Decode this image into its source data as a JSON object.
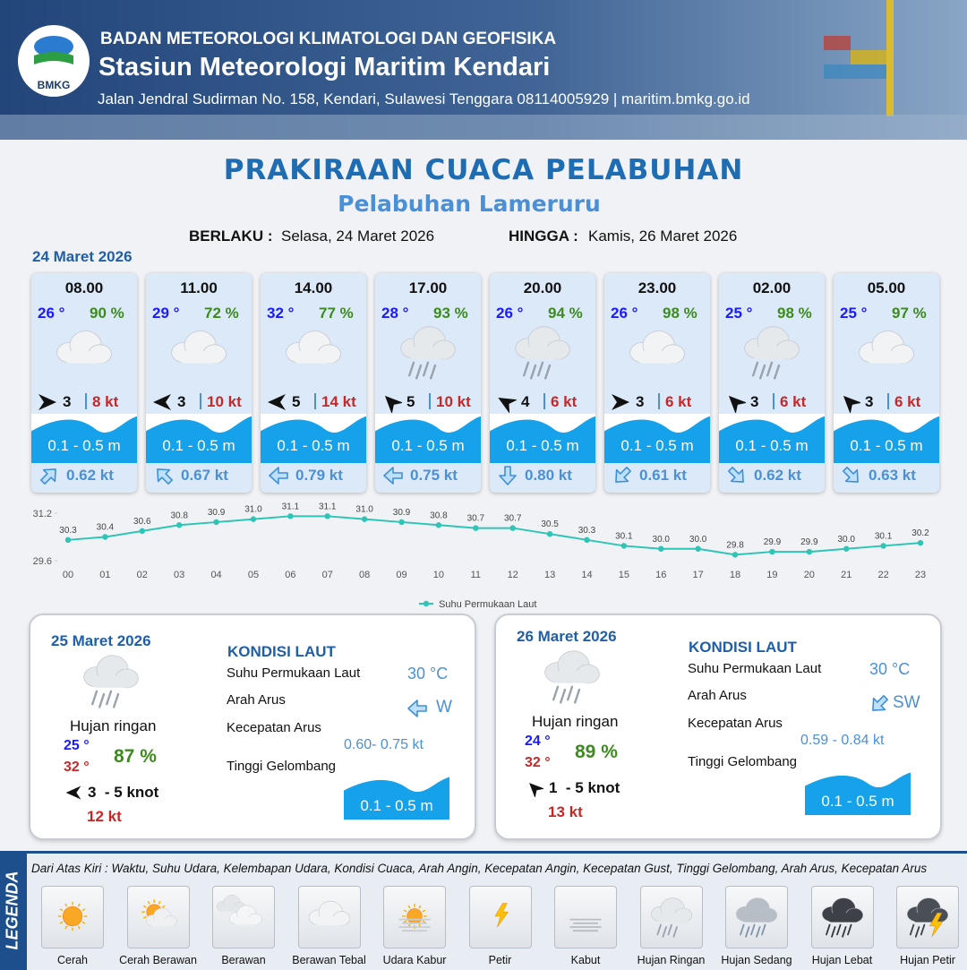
{
  "header": {
    "logo": "BMKG",
    "agency": "BADAN METEOROLOGI KLIMATOLOGI DAN GEOFISIKA",
    "station": "Stasiun Meteorologi Maritim Kendari",
    "address": "Jalan Jendral Sudirman No. 158, Kendari, Sulawesi Tenggara  08114005929 | maritim.bmkg.go.id"
  },
  "title": "PRAKIRAAN CUACA PELABUHAN",
  "subtitle": "Pelabuhan Lameruru",
  "validity": {
    "from_label": "BERLAKU :",
    "from": "Selasa, 24 Maret 2026",
    "to_label": "HINGGA :",
    "to": "Kamis, 26 Maret 2026"
  },
  "day1": {
    "date": "24 Maret 2026",
    "forecasts": [
      {
        "time": "08.00",
        "temp": "26 °",
        "humidity": "90 %",
        "wind": "3",
        "gust": "8 kt",
        "wave": "0.1 - 0.5 m",
        "current": "0.62 kt"
      },
      {
        "time": "11.00",
        "temp": "29 °",
        "humidity": "72 %",
        "wind": "3",
        "gust": "10 kt",
        "wave": "0.1 - 0.5 m",
        "current": "0.67 kt"
      },
      {
        "time": "14.00",
        "temp": "32 °",
        "humidity": "77 %",
        "wind": "5",
        "gust": "14 kt",
        "wave": "0.1 - 0.5 m",
        "current": "0.79 kt"
      },
      {
        "time": "17.00",
        "temp": "28 °",
        "humidity": "93 %",
        "wind": "5",
        "gust": "10 kt",
        "wave": "0.1 - 0.5 m",
        "current": "0.75 kt"
      },
      {
        "time": "20.00",
        "temp": "26 °",
        "humidity": "94 %",
        "wind": "4",
        "gust": "6 kt",
        "wave": "0.1 - 0.5 m",
        "current": "0.80 kt"
      },
      {
        "time": "23.00",
        "temp": "26 °",
        "humidity": "98 %",
        "wind": "3",
        "gust": "6 kt",
        "wave": "0.1 - 0.5 m",
        "current": "0.61 kt"
      },
      {
        "time": "02.00",
        "temp": "25 °",
        "humidity": "98 %",
        "wind": "3",
        "gust": "6 kt",
        "wave": "0.1 - 0.5 m",
        "current": "0.62 kt"
      },
      {
        "time": "05.00",
        "temp": "25 °",
        "humidity": "97 %",
        "wind": "3",
        "gust": "6 kt",
        "wave": "0.1 - 0.5 m",
        "current": "0.63 kt"
      }
    ]
  },
  "chart_data": {
    "type": "line",
    "categories": [
      "00",
      "01",
      "02",
      "03",
      "04",
      "05",
      "06",
      "07",
      "08",
      "09",
      "10",
      "11",
      "12",
      "13",
      "14",
      "15",
      "16",
      "17",
      "18",
      "19",
      "20",
      "21",
      "22",
      "23"
    ],
    "series": [
      {
        "name": "Suhu Permukaan Laut",
        "color": "#2ec4b6",
        "values": [
          30.3,
          30.4,
          30.6,
          30.8,
          30.9,
          31,
          31.1,
          31.1,
          31,
          30.9,
          30.8,
          30.7,
          30.7,
          30.5,
          30.3,
          30.1,
          30,
          30,
          29.8,
          29.9,
          29.9,
          30,
          30.1,
          30.2
        ],
        "value_labels": [
          "30.3",
          "30.4",
          "30.6",
          "30.8",
          "30.9",
          "31.0",
          "31.1",
          "31.1",
          "31.0",
          "30.9",
          "30.8",
          "30.7",
          "30.7",
          "30.5",
          "30.3",
          "30.1",
          "30.0",
          "30.0",
          "29.8",
          "29.9",
          "29.9",
          "30.0",
          "30.1",
          "30.2"
        ]
      }
    ],
    "ylim": [
      29.6,
      31.2
    ],
    "yticks": [
      29.6,
      31.2
    ],
    "grid": false,
    "legend": "bottom"
  },
  "days": [
    {
      "date": "25 Maret 2026",
      "weather": "Hujan ringan",
      "temp_min": "25 °",
      "temp_max": "32 °",
      "humidity": "87 %",
      "wind": "3  - 5 knot",
      "gust": "12 kt",
      "sea_title": "KONDISI LAUT",
      "labels": [
        "Suhu Permukaan Laut",
        "Arah Arus",
        "Kecepatan Arus",
        "Tinggi Gelombang"
      ],
      "sst": "30 °C",
      "current_dir": "W",
      "current_speed": "0.60- 0.75 kt",
      "wave": "0.1 - 0.5 m"
    },
    {
      "date": "26 Maret 2026",
      "weather": "Hujan ringan",
      "temp_min": "24 °",
      "temp_max": "32 °",
      "humidity": "89 %",
      "wind": "1  - 5 knot",
      "gust": "13 kt",
      "sea_title": "KONDISI LAUT",
      "labels": [
        "Suhu Permukaan Laut",
        "Arah Arus",
        "Kecepatan Arus",
        "Tinggi Gelombang"
      ],
      "sst": "30 °C",
      "current_dir": "SW",
      "current_speed": "0.59 - 0.84 kt",
      "wave": "0.1 - 0.5 m"
    }
  ],
  "legend": {
    "title": "LEGENDA",
    "description": "Dari Atas Kiri : Waktu, Suhu Udara, Kelembapan Udara, Kondisi Cuaca, Arah Angin, Kecepatan Angin, Kecepatan Gust, Tinggi Gelombang, Arah Arus, Kecepatan Arus",
    "items": [
      "Cerah",
      "Cerah Berawan",
      "Berawan",
      "Berawan Tebal",
      "Udara Kabur",
      "Petir",
      "Kabut",
      "Hujan Ringan",
      "Hujan Sedang",
      "Hujan Lebat",
      "Hujan Petir"
    ]
  }
}
